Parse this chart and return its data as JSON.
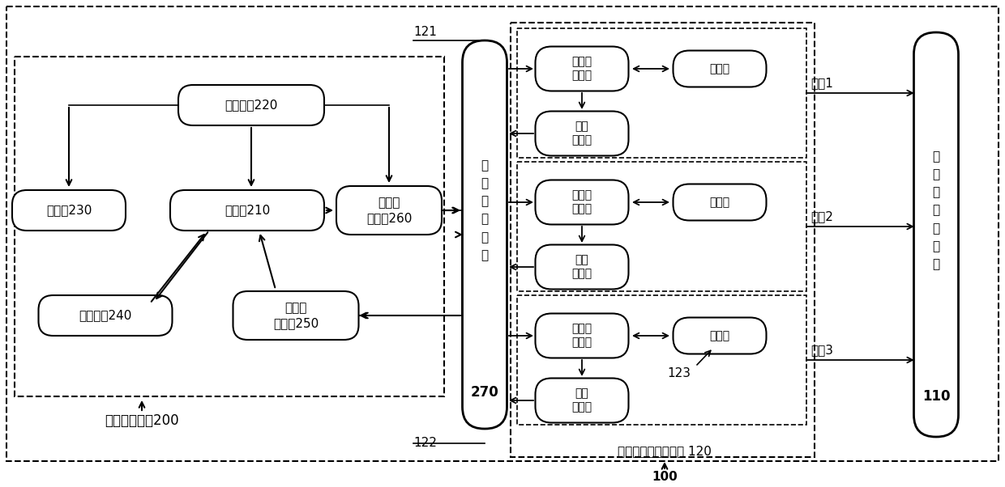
{
  "bg_color": "#ffffff",
  "line_color": "#000000",
  "font_family": "SimHei",
  "labels": {
    "ctrl_interface": "控\n制\n采\n集\n接\n口",
    "ctrl_num": "270",
    "wearable_support": "穿\n戴\n式\n装\n置\n支\n架",
    "wearable_num": "110",
    "channel1": "通道1",
    "channel2": "通道2",
    "channel3": "通道3",
    "temp_ctrl_sys": "温度控制系统200",
    "sliding_unit": "滑动式温度复现单元 120",
    "num_121": "121",
    "num_122": "122",
    "num_123": "123",
    "num_100": "100",
    "power": "电源模块220",
    "processor": "处理器210",
    "touchscreen": "触摸屏230",
    "converter": "调压换\n向模块260",
    "comm": "通信模块240",
    "temp_collect": "温度采\n集模块250",
    "semi": "半导体\n制冷器",
    "heat": "散热器",
    "temp_sensor": "温度\n传感器"
  }
}
